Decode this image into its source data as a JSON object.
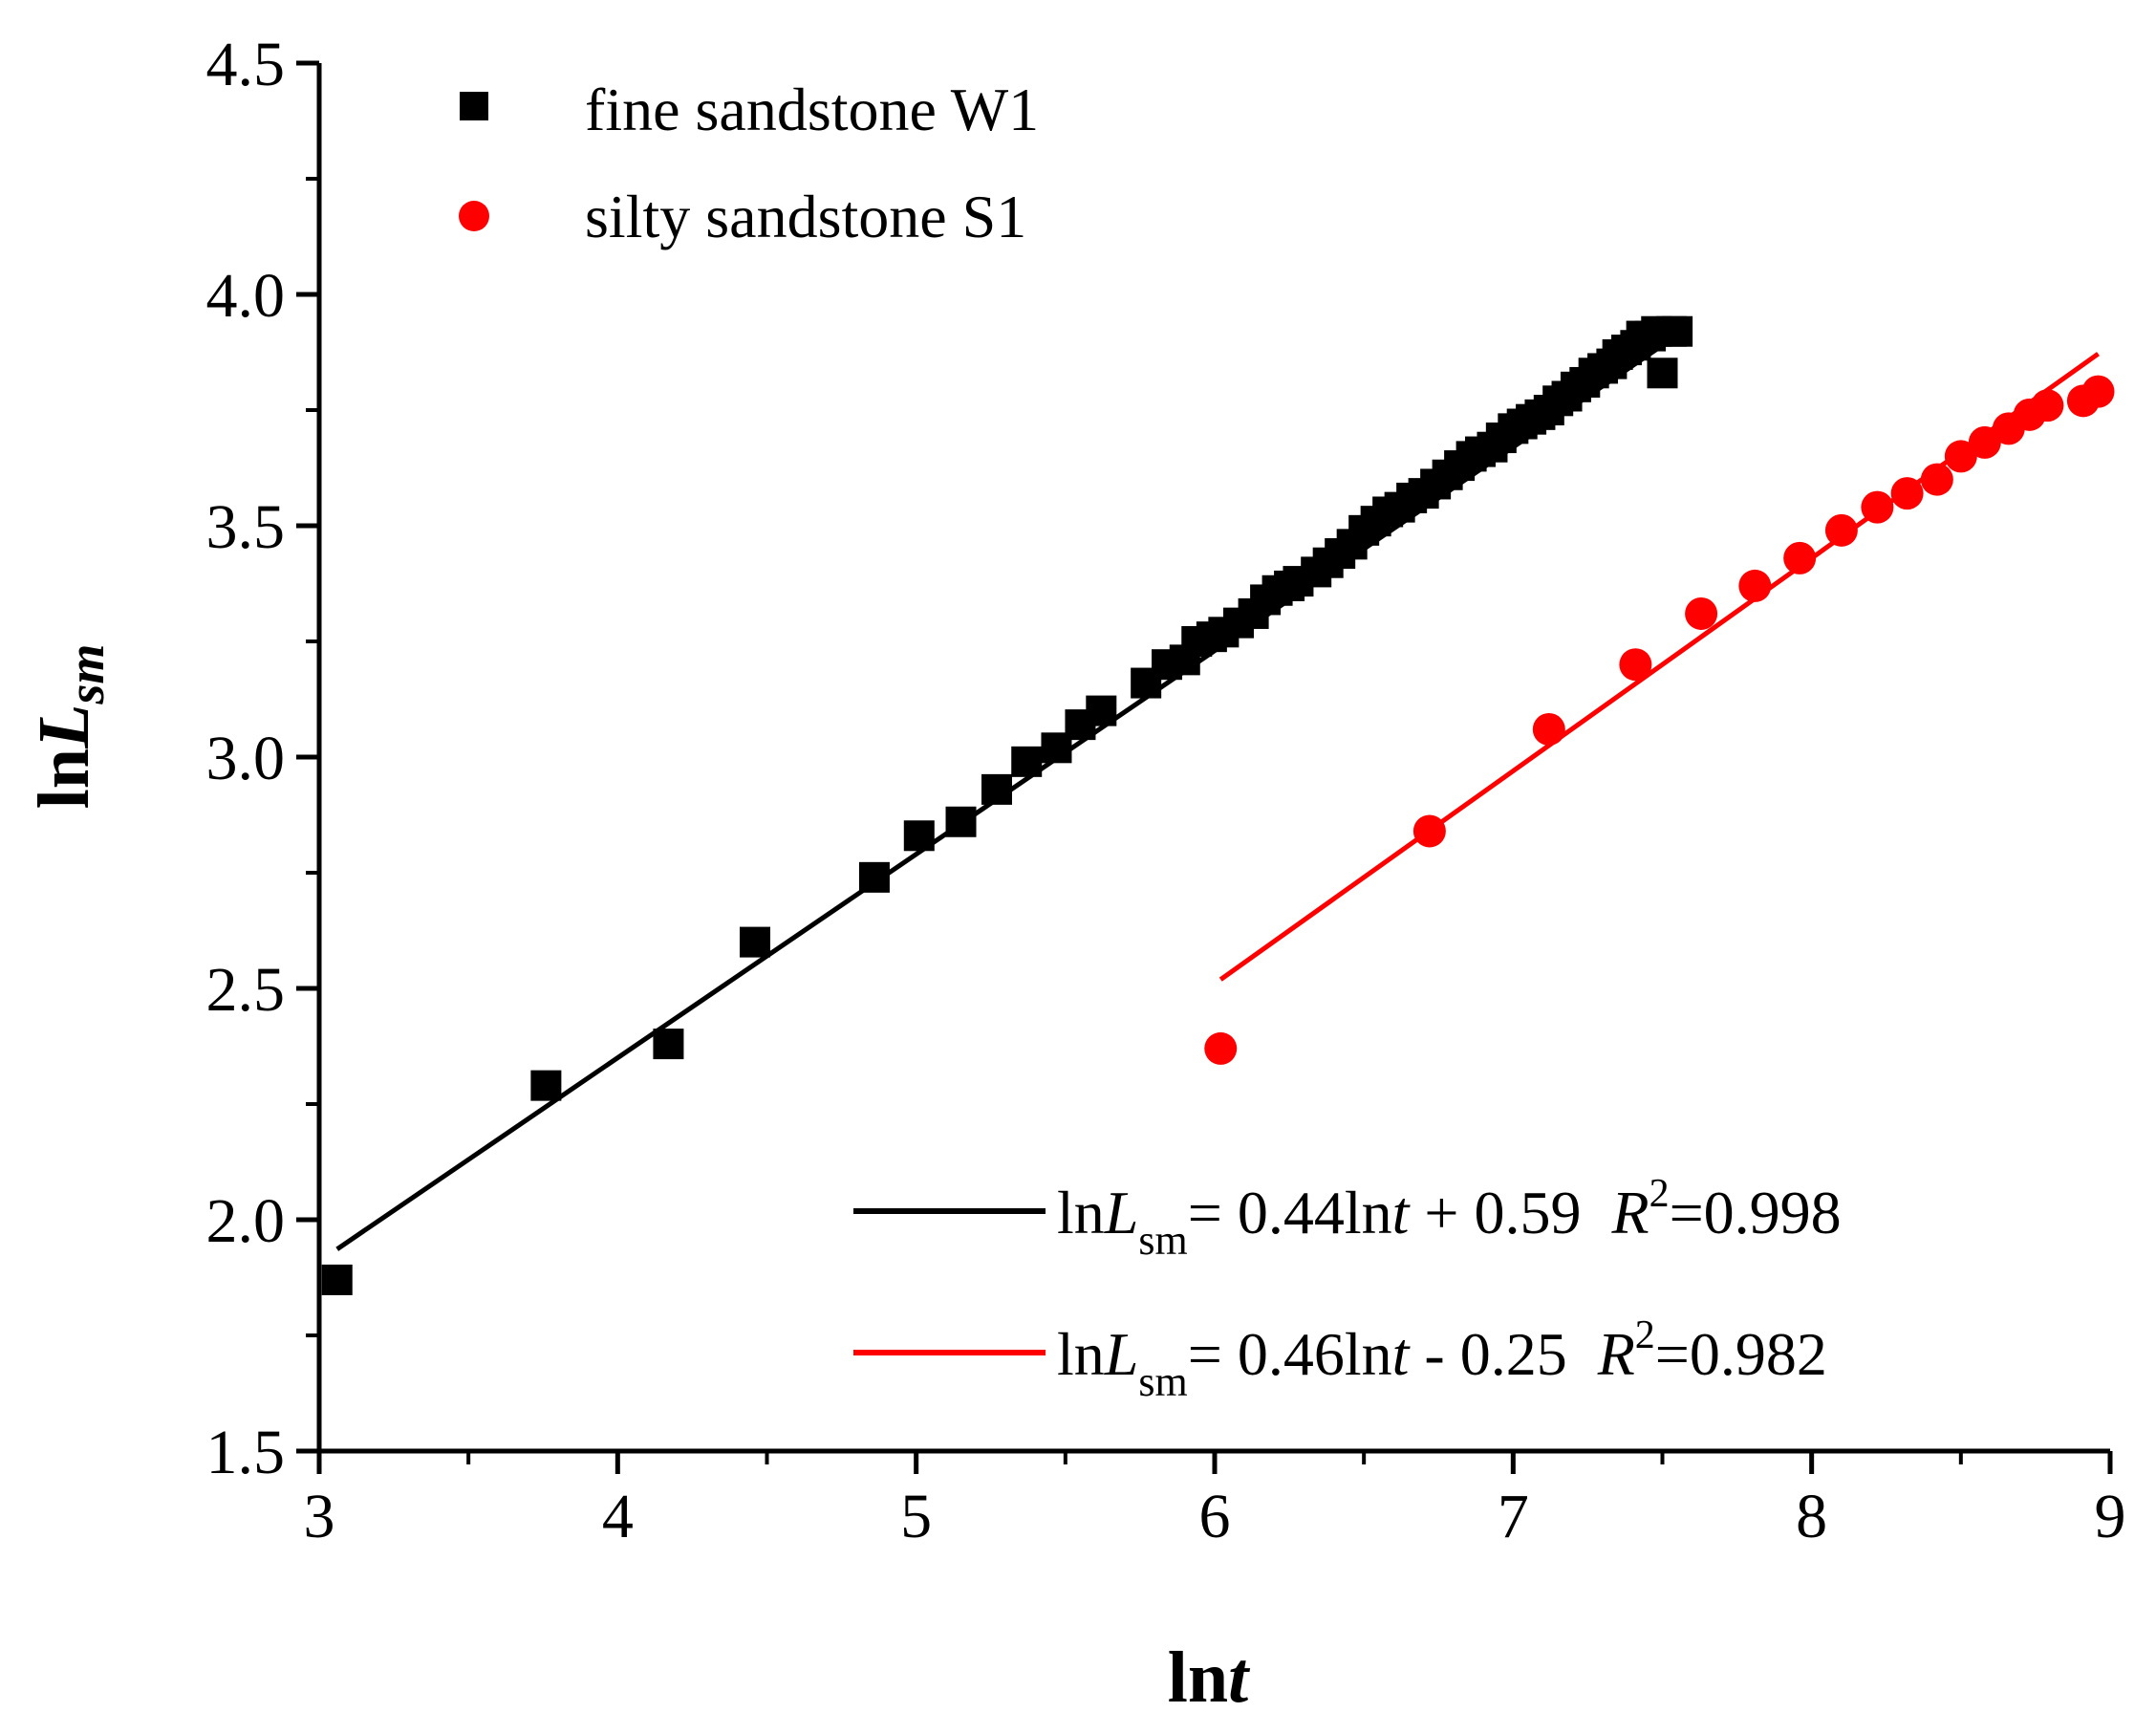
{
  "chart_data": {
    "type": "scatter",
    "title": "",
    "xlabel": {
      "main": "ln",
      "italic": "t"
    },
    "ylabel": {
      "main": "ln",
      "italic": "L",
      "sub": "sm"
    },
    "xlim": [
      3,
      9
    ],
    "ylim": [
      1.5,
      4.5
    ],
    "x_ticks": [
      3,
      4,
      5,
      6,
      7,
      8,
      9
    ],
    "x_tick_labels": [
      "3",
      "4",
      "5",
      "6",
      "7",
      "8",
      "9"
    ],
    "y_ticks": [
      1.5,
      2.0,
      2.5,
      3.0,
      3.5,
      4.0,
      4.5
    ],
    "y_tick_labels": [
      "1.5",
      "2.0",
      "2.5",
      "3.0",
      "3.5",
      "4.0",
      "4.5"
    ],
    "grid": false,
    "legend_position": "top-left",
    "fit_legend_position": "bottom-right",
    "series": [
      {
        "name": "fine sandstone W1",
        "marker": "square",
        "color": "#000000",
        "x": [
          3.06,
          3.76,
          4.17,
          4.46,
          4.86,
          5.01,
          5.15,
          5.27,
          5.37,
          5.47,
          5.55,
          5.62,
          5.77,
          5.84,
          5.9,
          5.94,
          5.99,
          6.03,
          6.08,
          6.13,
          6.17,
          6.21,
          6.25,
          6.28,
          6.34,
          6.38,
          6.42,
          6.46,
          6.5,
          6.54,
          6.58,
          6.62,
          6.66,
          6.7,
          6.74,
          6.78,
          6.82,
          6.86,
          6.89,
          6.93,
          6.96,
          7.0,
          7.03,
          7.06,
          7.09,
          7.12,
          7.15,
          7.18,
          7.21,
          7.24,
          7.27,
          7.3,
          7.33,
          7.35,
          7.38,
          7.41,
          7.43,
          7.46,
          7.48,
          7.5,
          7.53,
          7.55
        ],
        "y": [
          1.87,
          2.29,
          2.38,
          2.6,
          2.74,
          2.83,
          2.86,
          2.93,
          2.99,
          3.02,
          3.07,
          3.1,
          3.16,
          3.2,
          3.21,
          3.25,
          3.26,
          3.27,
          3.29,
          3.31,
          3.34,
          3.36,
          3.37,
          3.38,
          3.4,
          3.42,
          3.44,
          3.46,
          3.49,
          3.51,
          3.53,
          3.54,
          3.56,
          3.57,
          3.59,
          3.61,
          3.63,
          3.65,
          3.66,
          3.67,
          3.69,
          3.71,
          3.72,
          3.73,
          3.74,
          3.75,
          3.77,
          3.78,
          3.8,
          3.81,
          3.83,
          3.84,
          3.85,
          3.87,
          3.88,
          3.89,
          3.91,
          3.91,
          3.92,
          3.83,
          3.92,
          3.92
        ]
      },
      {
        "name": "silty sandstone S1",
        "marker": "circle",
        "color": "#ff0000",
        "x": [
          6.02,
          6.72,
          7.12,
          7.41,
          7.63,
          7.81,
          7.96,
          8.1,
          8.22,
          8.32,
          8.42,
          8.5,
          8.58,
          8.66,
          8.73,
          8.79,
          8.91,
          8.96
        ],
        "y": [
          2.37,
          2.84,
          3.06,
          3.2,
          3.31,
          3.37,
          3.43,
          3.49,
          3.54,
          3.57,
          3.6,
          3.65,
          3.68,
          3.71,
          3.74,
          3.76,
          3.77,
          3.79
        ]
      }
    ],
    "fits": [
      {
        "series": "fine sandstone W1",
        "color": "#000000",
        "slope": 0.44,
        "intercept": 0.59,
        "x_start": 3.06,
        "x_end": 7.55,
        "label": {
          "ln": "ln",
          "var": "L",
          "sub": "sm",
          "body_a": "= 0.44ln",
          "t": "t",
          "body_b": " + 0.59  ",
          "r": "R",
          "sup": "2",
          "r_val": "=0.998"
        }
      },
      {
        "series": "silty sandstone S1",
        "color": "#ff0000",
        "slope": 0.46,
        "intercept": -0.25,
        "x_start": 6.02,
        "x_end": 8.96,
        "label": {
          "ln": "ln",
          "var": "L",
          "sub": "sm",
          "body_a": "= 0.46ln",
          "t": "t",
          "body_b": " - 0.25  ",
          "r": "R",
          "sup": "2",
          "r_val": "=0.982"
        }
      }
    ]
  }
}
